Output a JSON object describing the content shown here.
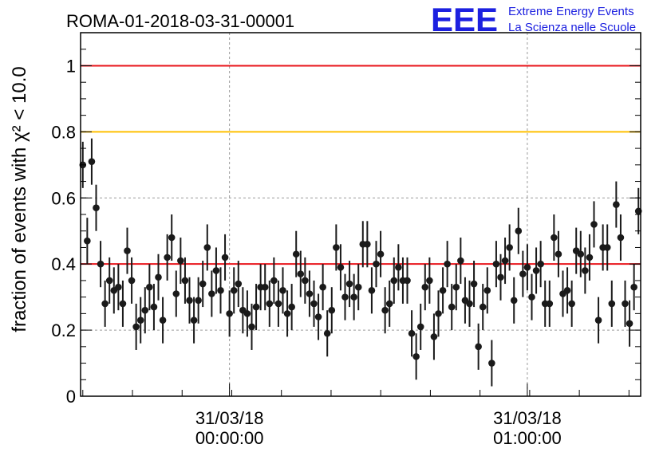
{
  "header": {
    "run_title": "ROMA-01-2018-03-31-00001",
    "logo_text": "EEE",
    "logo_line1": "Extreme Energy Events",
    "logo_line2": "La Scienza nelle Scuole"
  },
  "colors": {
    "background": "#ffffff",
    "marker": "#1a1a1a",
    "ref_red": "#e8141b",
    "ref_orange": "#ffc000",
    "logo_blue": "#1c20e0",
    "grid": "#9a9a9a"
  },
  "chart_data": {
    "type": "scatter",
    "title": "ROMA-01-2018-03-31-00001",
    "ylabel": "fraction of events with χ² < 10.0",
    "xlabel": "",
    "ylim": [
      0,
      1.1
    ],
    "grid": true,
    "y_ticks": [
      {
        "value": 0,
        "label": "0"
      },
      {
        "value": 0.2,
        "label": "0.2"
      },
      {
        "value": 0.4,
        "label": "0.4"
      },
      {
        "value": 0.6,
        "label": "0.6"
      },
      {
        "value": 0.8,
        "label": "0.8"
      },
      {
        "value": 1,
        "label": "1"
      }
    ],
    "x_ticks": [
      {
        "index": 33.5,
        "date": "31/03/18",
        "time": "00:00:00"
      },
      {
        "index": 100.5,
        "date": "31/03/18",
        "time": "01:00:00"
      }
    ],
    "reference_lines": [
      {
        "y": 1.0,
        "color": "#e8141b"
      },
      {
        "y": 0.8,
        "color": "#ffc000"
      },
      {
        "y": 0.4,
        "color": "#e8141b"
      }
    ],
    "error_bar": 0.07,
    "values": [
      0.7,
      0.47,
      0.71,
      0.57,
      0.4,
      0.28,
      0.35,
      0.32,
      0.33,
      0.28,
      0.44,
      0.35,
      0.21,
      0.23,
      0.26,
      0.33,
      0.27,
      0.36,
      0.23,
      0.42,
      0.48,
      0.31,
      0.41,
      0.35,
      0.29,
      0.23,
      0.29,
      0.34,
      0.45,
      0.31,
      0.38,
      0.32,
      0.42,
      0.25,
      0.32,
      0.34,
      0.26,
      0.25,
      0.21,
      0.27,
      0.33,
      0.33,
      0.28,
      0.35,
      0.28,
      0.32,
      0.25,
      0.27,
      0.43,
      0.37,
      0.35,
      0.31,
      0.28,
      0.24,
      0.33,
      0.19,
      0.26,
      0.45,
      0.39,
      0.3,
      0.34,
      0.3,
      0.33,
      0.46,
      0.46,
      0.32,
      0.4,
      0.43,
      0.26,
      0.28,
      0.35,
      0.39,
      0.35,
      0.35,
      0.19,
      0.12,
      0.21,
      0.33,
      0.35,
      0.18,
      0.25,
      0.32,
      0.4,
      0.27,
      0.33,
      0.41,
      0.29,
      0.28,
      0.34,
      0.15,
      0.27,
      0.32,
      0.1,
      0.4,
      0.36,
      0.41,
      0.45,
      0.29,
      0.5,
      0.37,
      0.39,
      0.3,
      0.38,
      0.4,
      0.28,
      0.28,
      0.48,
      0.43,
      0.31,
      0.32,
      0.28,
      0.44,
      0.43,
      0.38,
      0.42,
      0.52,
      0.23,
      0.45,
      0.45,
      0.28,
      0.58,
      0.48,
      0.28,
      0.22,
      0.33,
      0.56
    ]
  }
}
